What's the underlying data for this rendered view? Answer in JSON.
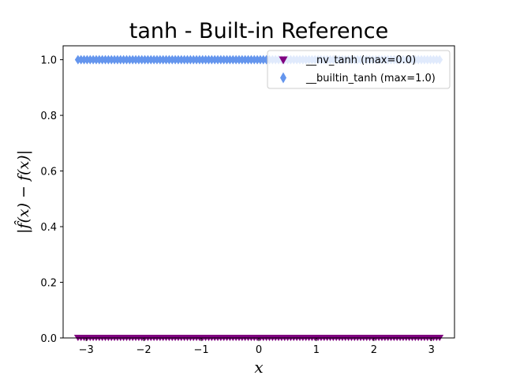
{
  "chart_data": {
    "type": "scatter",
    "title": "tanh - Built-in Reference",
    "xlabel": "x",
    "ylabel": "|f̂(x) − f(x)|",
    "xlim": [
      -3.4,
      3.4
    ],
    "ylim": [
      0,
      1.05
    ],
    "xticks": [
      -3,
      -2,
      -1,
      0,
      1,
      2,
      3
    ],
    "xtick_labels": [
      "−3",
      "−2",
      "−1",
      "0",
      "1",
      "2",
      "3"
    ],
    "yticks": [
      0.0,
      0.2,
      0.4,
      0.6,
      0.8,
      1.0
    ],
    "ytick_labels": [
      "0.0",
      "0.2",
      "0.4",
      "0.6",
      "0.8",
      "1.0"
    ],
    "grid": false,
    "legend_position": "top-right",
    "x_range": [
      -3.14159,
      3.14159
    ],
    "series": [
      {
        "name": "__nv_tanh (max=0.0)",
        "marker": "triangle-down",
        "color": "#800080",
        "y": 0.0
      },
      {
        "name": "__builtin_tanh (max=1.0)",
        "marker": "thin-diamond",
        "color": "#6495ED",
        "y": 1.0
      }
    ]
  }
}
